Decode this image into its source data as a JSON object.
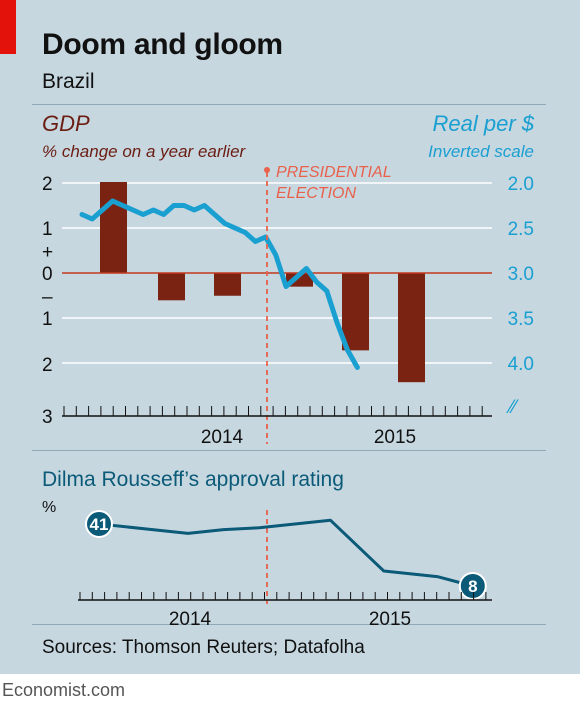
{
  "header": {
    "title": "Doom and gloom",
    "subtitle": "Brazil"
  },
  "footer": {
    "sources": "Sources: Thomson Reuters; Datafolha",
    "brand": "Economist.com"
  },
  "colors": {
    "background": "#c6d7e0",
    "gdp_bar": "#7a2312",
    "gdp_label": "#6b1d12",
    "currency_line": "#1a9fd1",
    "approval_line": "#0b5a78",
    "event_line": "#e9614b",
    "brand_red": "#e3120b"
  },
  "annotation": {
    "line1": "PRESIDENTIAL",
    "line2": "ELECTION"
  },
  "chart_data": [
    {
      "type": "bar",
      "title": "GDP",
      "subtitle": "% change on a year earlier",
      "left_axis_ticks": [
        "2",
        "1",
        "+",
        "0",
        "–",
        "1",
        "2",
        "3"
      ],
      "x_ticks": [
        "2014",
        "2015"
      ],
      "categories": [
        "2013 Q3",
        "2013 Q4",
        "2014 Q1",
        "2014 Q2",
        "2014 Q3",
        "2014 Q4",
        "2015 Q1",
        "2015 Q2",
        "2015 Q3"
      ],
      "values": [
        2.0,
        null,
        -0.6,
        -0.5,
        null,
        -0.3,
        -1.7,
        -2.4,
        null
      ],
      "ylim": [
        -3,
        2.5
      ],
      "series_overlay": {
        "type": "line",
        "title": "Real per $",
        "subtitle": "Inverted scale",
        "right_axis_ticks": [
          "2.0",
          "2.5",
          "3.0",
          "3.5",
          "4.0"
        ],
        "ylim_inverted": [
          1.85,
          4.15
        ],
        "x": [
          "2013-07",
          "2013-08",
          "2013-09",
          "2013-10",
          "2013-11",
          "2013-12",
          "2014-01",
          "2014-02",
          "2014-03",
          "2014-04",
          "2014-05",
          "2014-06",
          "2014-07",
          "2014-08",
          "2014-09",
          "2014-10",
          "2014-11",
          "2014-12",
          "2015-01",
          "2015-02",
          "2015-03",
          "2015-04",
          "2015-05",
          "2015-06",
          "2015-07",
          "2015-08",
          "2015-09",
          "2015-10"
        ],
        "values": [
          2.35,
          2.4,
          2.3,
          2.2,
          2.25,
          2.3,
          2.35,
          2.3,
          2.35,
          2.25,
          2.25,
          2.3,
          2.25,
          2.35,
          2.45,
          2.5,
          2.55,
          2.65,
          2.6,
          2.8,
          3.15,
          3.05,
          2.95,
          3.1,
          3.2,
          3.55,
          3.85,
          4.05
        ]
      },
      "event": {
        "label": "PRESIDENTIAL ELECTION",
        "date": "2014-10"
      }
    },
    {
      "type": "line",
      "title": "Dilma Rousseff’s approval rating",
      "ylabel": "%",
      "x_ticks": [
        "2014",
        "2015"
      ],
      "x": [
        "2013-11",
        "2014-02",
        "2014-04",
        "2014-06",
        "2014-08",
        "2014-10",
        "2014-12",
        "2015-03",
        "2015-06",
        "2015-08"
      ],
      "values": [
        41,
        38,
        36,
        38,
        39,
        41,
        43,
        16,
        13,
        8
      ],
      "end_labels": {
        "first": "41",
        "last": "8"
      }
    }
  ]
}
